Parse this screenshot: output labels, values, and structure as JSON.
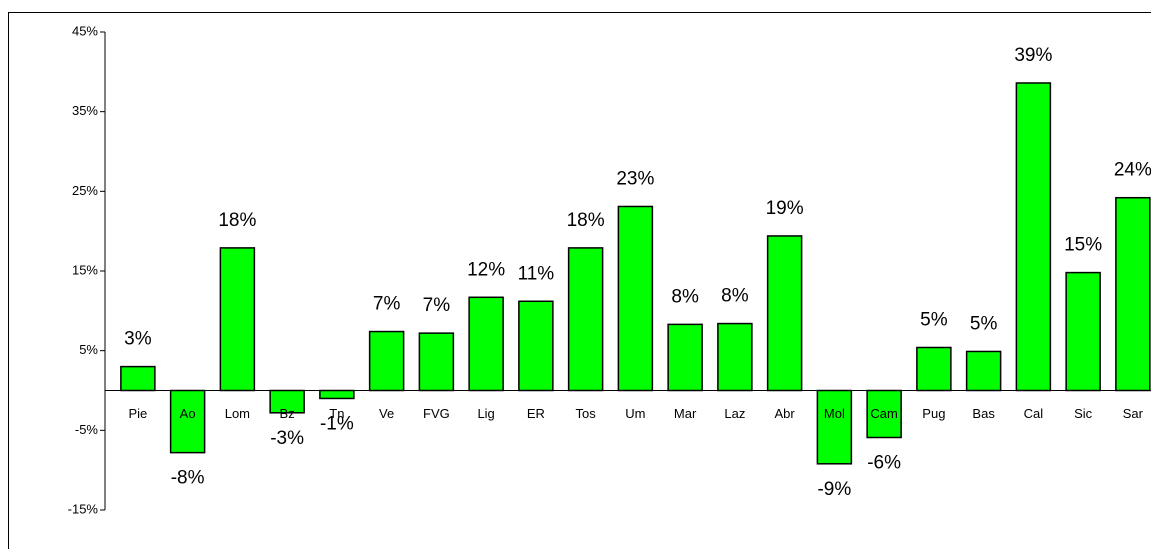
{
  "chart_data": {
    "type": "bar",
    "categories": [
      "Pie",
      "Ao",
      "Lom",
      "Bz",
      "Tn",
      "Ve",
      "FVG",
      "Lig",
      "ER",
      "Tos",
      "Um",
      "Mar",
      "Laz",
      "Abr",
      "Mol",
      "Cam",
      "Pug",
      "Bas",
      "Cal",
      "Sic",
      "Sar"
    ],
    "values": [
      3.0,
      -7.8,
      17.9,
      -2.8,
      -1.0,
      7.4,
      7.2,
      11.7,
      11.2,
      17.9,
      23.1,
      8.3,
      8.4,
      19.4,
      -9.2,
      -5.9,
      5.4,
      4.9,
      38.6,
      14.8,
      24.2
    ],
    "value_labels": [
      "3%",
      "-8%",
      "18%",
      "-3%",
      "-1%",
      "7%",
      "7%",
      "12%",
      "11%",
      "18%",
      "23%",
      "8%",
      "8%",
      "19%",
      "-9%",
      "-6%",
      "5%",
      "5%",
      "39%",
      "15%",
      "24%"
    ],
    "color": "#00ff00",
    "ylim": [
      -15,
      45
    ],
    "yticks": [
      {
        "value": -15,
        "label": "-15%"
      },
      {
        "value": -5,
        "label": "-5%"
      },
      {
        "value": 5,
        "label": "5%"
      },
      {
        "value": 15,
        "label": "15%"
      },
      {
        "value": 25,
        "label": "25%"
      },
      {
        "value": 35,
        "label": "35%"
      },
      {
        "value": 45,
        "label": "45%"
      }
    ],
    "grid": false
  }
}
